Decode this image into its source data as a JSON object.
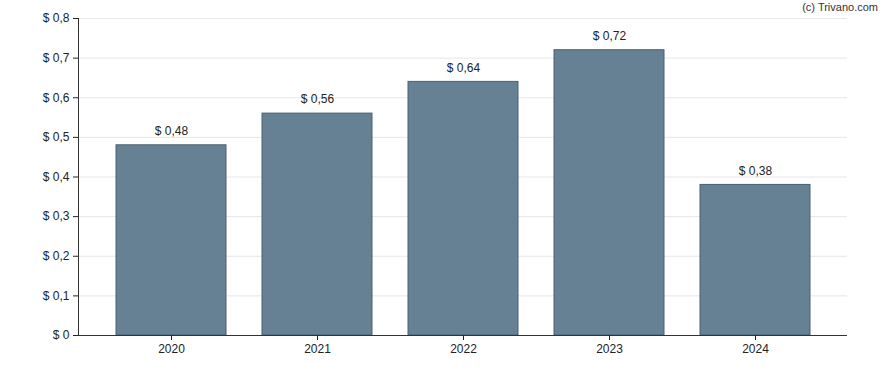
{
  "chart_data": {
    "type": "bar",
    "caption": "(c) Trivano.com",
    "categories": [
      "2020",
      "2021",
      "2022",
      "2023",
      "2024"
    ],
    "values": [
      0.48,
      0.56,
      0.64,
      0.72,
      0.38
    ],
    "value_labels": [
      "$ 0,48",
      "$ 0,56",
      "$ 0,64",
      "$ 0,72",
      "$ 0,38"
    ],
    "data_labels": true,
    "color": "#668194",
    "ylim": [
      0,
      0.8
    ],
    "yticks": [
      {
        "value": 0,
        "label": "$ 0"
      },
      {
        "value": 0.1,
        "label": "$ 0,1"
      },
      {
        "value": 0.2,
        "label": "$ 0,2"
      },
      {
        "value": 0.3,
        "label": "$ 0,3"
      },
      {
        "value": 0.4,
        "label": "$ 0,4"
      },
      {
        "value": 0.5,
        "label": "$ 0,5"
      },
      {
        "value": 0.6,
        "label": "$ 0,6"
      },
      {
        "value": 0.7,
        "label": "$ 0,7"
      },
      {
        "value": 0.8,
        "label": "$ 0,8"
      }
    ],
    "grid": true
  }
}
